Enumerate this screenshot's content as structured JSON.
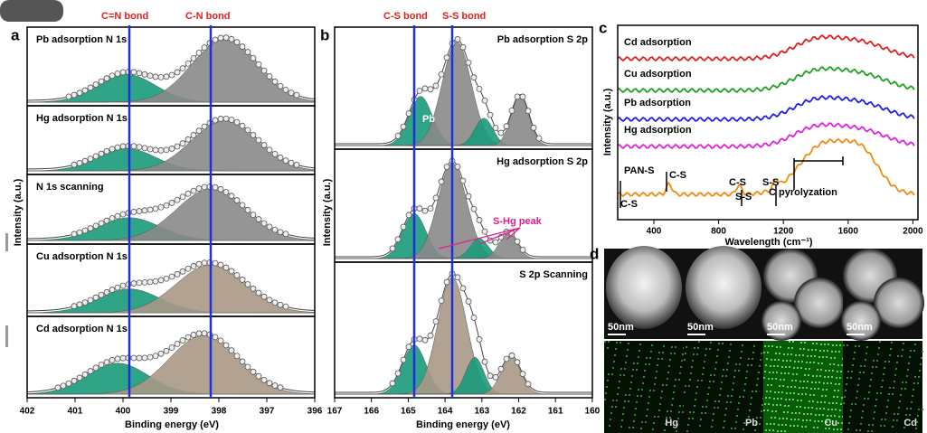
{
  "panel_a": {
    "label": "a",
    "annotations": [
      "C=N bond",
      "C-N bond"
    ],
    "y_label": "Intensity (a.u.)",
    "x_label": "Binding energy (eV)",
    "xticks": [
      402,
      401,
      400,
      399,
      398,
      397,
      396
    ],
    "spectra": [
      "Pb adsorption N 1s",
      "Hg adsorption N 1s",
      "N 1s scanning",
      "Cu adsorption N 1s",
      "Cd adsorption N 1s"
    ]
  },
  "panel_b": {
    "label": "b",
    "annotations": [
      "C-S bond",
      "S-S bond"
    ],
    "y_label": "Intensity (a.u.)",
    "x_label": "Binding energy (eV)",
    "xticks": [
      167,
      166,
      165,
      164,
      163,
      162,
      161,
      160
    ],
    "spectra": [
      "Pb adsorption S 2p",
      "Hg adsorption S 2p",
      "S 2p Scanning"
    ],
    "peak_labels": [
      "Pb",
      "S-Hg peak"
    ]
  },
  "panel_c": {
    "label": "c",
    "y_label": "Intensity (a.u.)",
    "x_label": "Wavelength (cm⁻¹)",
    "xticks": [
      400,
      800,
      1200,
      1600,
      2000
    ],
    "spectra": [
      "Cd adsorption",
      "Cu adsorption",
      "Pb adsorption",
      "Hg adsorption",
      "PAN-S"
    ],
    "peak_labels": [
      "C-S",
      "C-S",
      "C-S",
      "S-S",
      "S-S",
      "C pyrolyzation"
    ]
  },
  "panel_d": {
    "label": "d",
    "scale_bars": [
      "50nm",
      "50nm",
      "50nm",
      "50nm"
    ],
    "elements": [
      "Hg",
      "Pb",
      "Cu",
      "Cd"
    ]
  }
}
